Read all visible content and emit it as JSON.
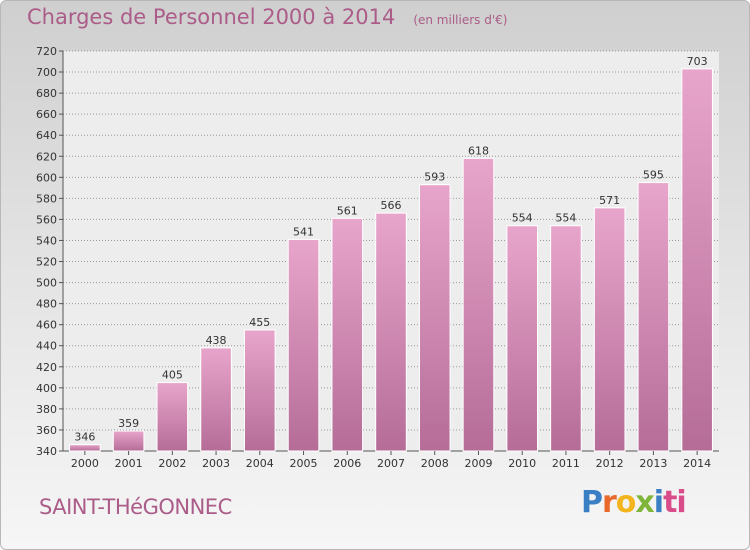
{
  "header": {
    "title": "Charges de Personnel 2000 à 2014",
    "subtitle": "(en milliers d'€)"
  },
  "footer": {
    "commune": "SAINT-THéGONNEC",
    "brand_letters": [
      "P",
      "r",
      "o",
      "x",
      "i",
      "ti"
    ]
  },
  "colors": {
    "bar_top": "#e8a5cb",
    "bar_bottom": "#b56d98",
    "title": "#ab5c88"
  },
  "chart_data": {
    "type": "bar",
    "title": "Charges de Personnel 2000 à 2014",
    "subtitle": "(en milliers d'€)",
    "categories": [
      "2000",
      "2001",
      "2002",
      "2003",
      "2004",
      "2005",
      "2006",
      "2007",
      "2008",
      "2009",
      "2010",
      "2011",
      "2012",
      "2013",
      "2014"
    ],
    "values": [
      346,
      359,
      405,
      438,
      455,
      541,
      561,
      566,
      593,
      618,
      554,
      554,
      571,
      595,
      703
    ],
    "ylim": [
      340,
      720
    ],
    "yticks": [
      340,
      360,
      380,
      400,
      420,
      440,
      460,
      480,
      500,
      520,
      540,
      560,
      580,
      600,
      620,
      640,
      660,
      680,
      700,
      720
    ],
    "grid": true,
    "xlabel": "",
    "ylabel": ""
  }
}
